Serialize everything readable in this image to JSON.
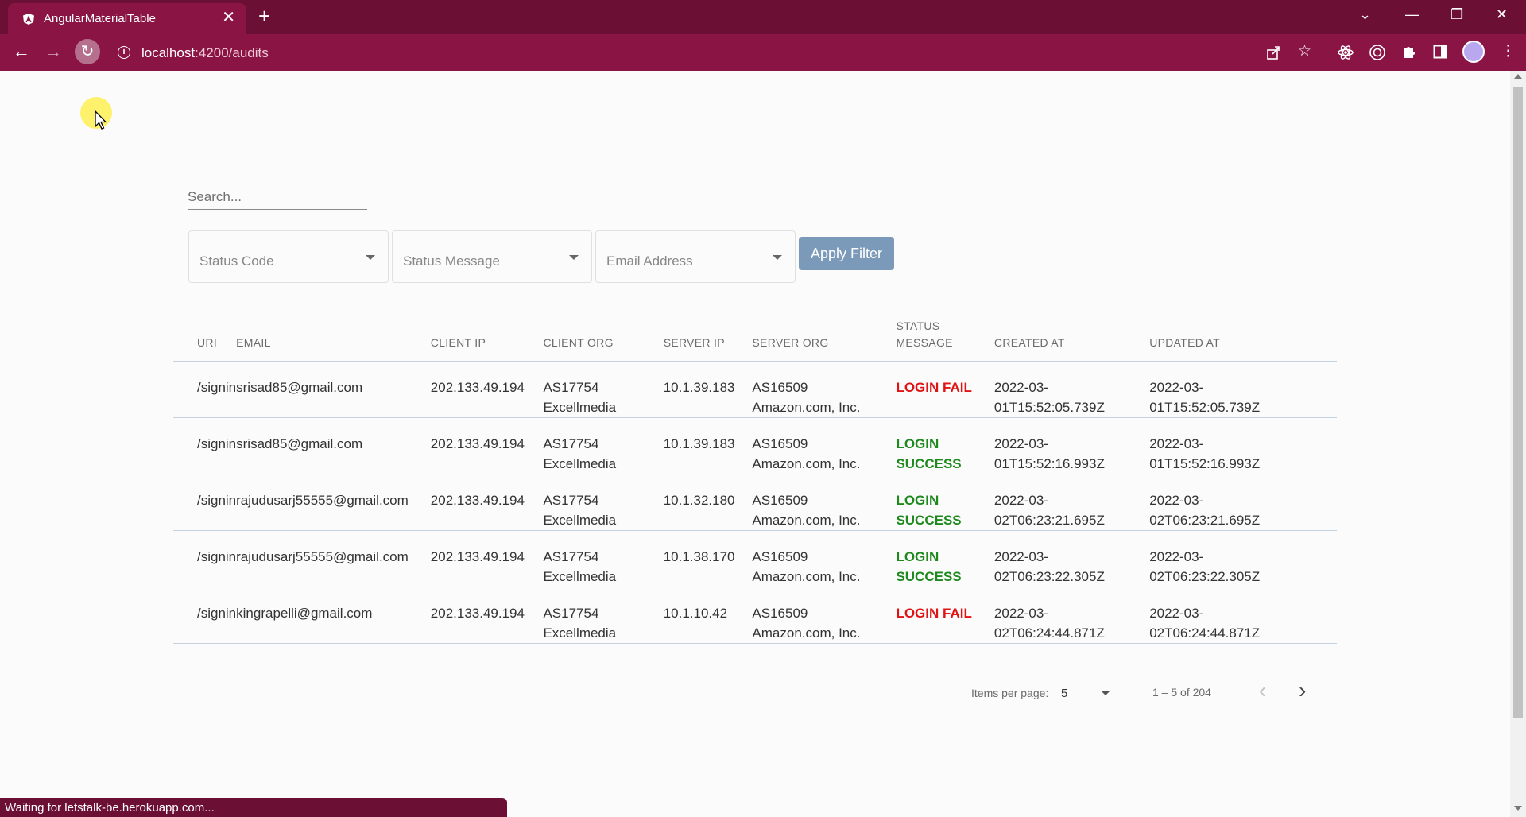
{
  "browser": {
    "tab_title": "AngularMaterialTable",
    "tab_close": "✕",
    "new_tab": "+",
    "url_host": "localhost",
    "url_path": ":4200/audits",
    "minimize": "—",
    "restore": "❐",
    "close": "✕",
    "chevron": "⌄",
    "back": "←",
    "forward": "→",
    "reload": "↻",
    "colors": {
      "tabbar": "#6b0f35",
      "toolbar": "#8a1545"
    }
  },
  "filters": {
    "search_placeholder": "Search...",
    "status_code_placeholder": "Status Code",
    "status_message_placeholder": "Status Message",
    "email_placeholder": "Email Address",
    "apply_label": "Apply Filter"
  },
  "table": {
    "headers": {
      "uri": "URI",
      "email": "EMAIL",
      "client_ip": "CLIENT IP",
      "client_org": "CLIENT ORG",
      "server_ip": "SERVER IP",
      "server_org": "SERVER ORG",
      "status_message_line1": "STATUS",
      "status_message_line2": "MESSAGE",
      "created_at": "CREATED AT",
      "updated_at": "UPDATED AT"
    },
    "rows": [
      {
        "uri": "/signin",
        "email": "srisad85@gmail.com",
        "client_ip": "202.133.49.194",
        "client_org_1": "AS17754",
        "client_org_2": "Excellmedia",
        "server_ip": "10.1.39.183",
        "server_org_1": "AS16509",
        "server_org_2": "Amazon.com, Inc.",
        "status_1": "LOGIN FAIL",
        "status_2": "",
        "created_1": "2022-03-",
        "created_2": "01T15:52:05.739Z",
        "updated_1": "2022-03-",
        "updated_2": "01T15:52:05.739Z"
      },
      {
        "uri": "/signin",
        "email": "srisad85@gmail.com",
        "client_ip": "202.133.49.194",
        "client_org_1": "AS17754",
        "client_org_2": "Excellmedia",
        "server_ip": "10.1.39.183",
        "server_org_1": "AS16509",
        "server_org_2": "Amazon.com, Inc.",
        "status_1": "LOGIN",
        "status_2": "SUCCESS",
        "created_1": "2022-03-",
        "created_2": "01T15:52:16.993Z",
        "updated_1": "2022-03-",
        "updated_2": "01T15:52:16.993Z"
      },
      {
        "uri": "/signin",
        "email": "rajudusarj55555@gmail.com",
        "client_ip": "202.133.49.194",
        "client_org_1": "AS17754",
        "client_org_2": "Excellmedia",
        "server_ip": "10.1.32.180",
        "server_org_1": "AS16509",
        "server_org_2": "Amazon.com, Inc.",
        "status_1": "LOGIN",
        "status_2": "SUCCESS",
        "created_1": "2022-03-",
        "created_2": "02T06:23:21.695Z",
        "updated_1": "2022-03-",
        "updated_2": "02T06:23:21.695Z"
      },
      {
        "uri": "/signin",
        "email": "rajudusarj55555@gmail.com",
        "client_ip": "202.133.49.194",
        "client_org_1": "AS17754",
        "client_org_2": "Excellmedia",
        "server_ip": "10.1.38.170",
        "server_org_1": "AS16509",
        "server_org_2": "Amazon.com, Inc.",
        "status_1": "LOGIN",
        "status_2": "SUCCESS",
        "created_1": "2022-03-",
        "created_2": "02T06:23:22.305Z",
        "updated_1": "2022-03-",
        "updated_2": "02T06:23:22.305Z"
      },
      {
        "uri": "/signin",
        "email": "kingrapelli@gmail.com",
        "client_ip": "202.133.49.194",
        "client_org_1": "AS17754",
        "client_org_2": "Excellmedia",
        "server_ip": "10.1.10.42",
        "server_org_1": "AS16509",
        "server_org_2": "Amazon.com, Inc.",
        "status_1": "LOGIN FAIL",
        "status_2": "",
        "created_1": "2022-03-",
        "created_2": "02T06:24:44.871Z",
        "updated_1": "2022-03-",
        "updated_2": "02T06:24:44.871Z"
      }
    ],
    "row_status_classes": [
      "st-fail",
      "st-success",
      "st-success",
      "st-success",
      "st-fail"
    ]
  },
  "paginator": {
    "items_per_page_label": "Items per page:",
    "items_per_page_value": "5",
    "range_label": "1 – 5 of 204",
    "prev": "‹",
    "next": "›"
  },
  "status_bar": "Waiting for letstalk-be.herokuapp.com..."
}
